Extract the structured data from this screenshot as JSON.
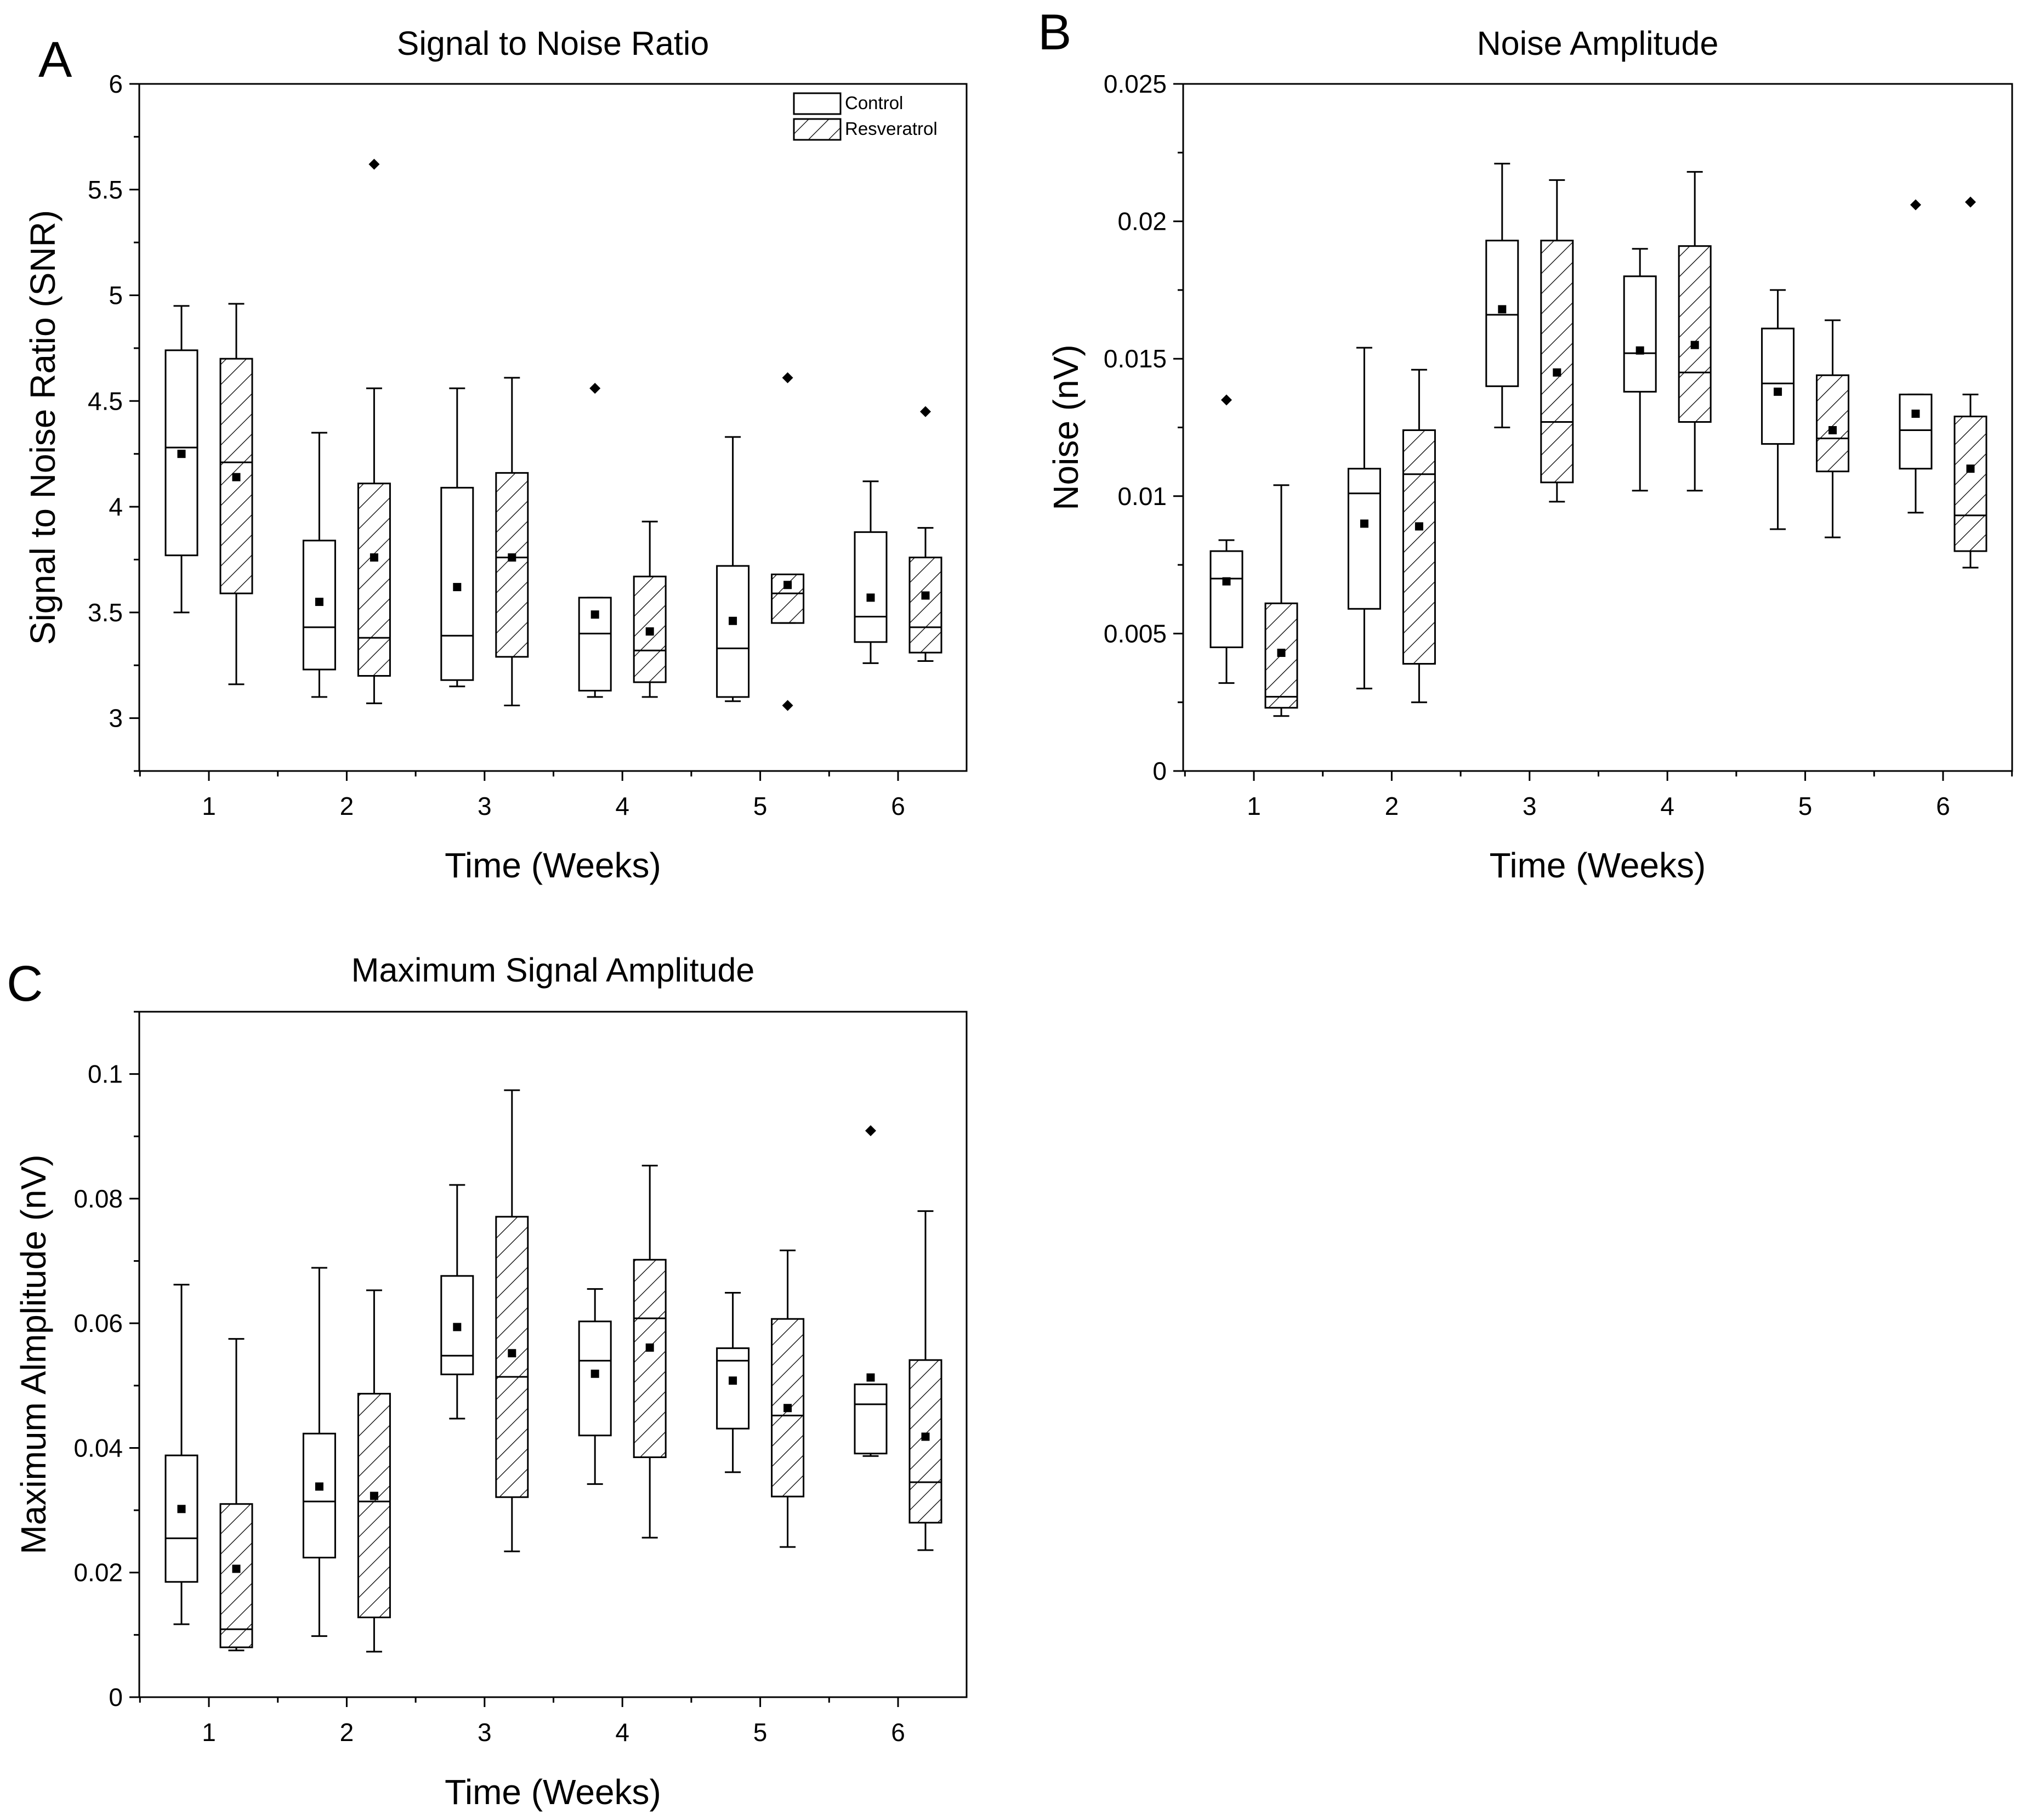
{
  "chart_data": [
    {
      "type": "box",
      "panel": "A",
      "title": "Signal to Noise Ratio",
      "xlabel": "Time (Weeks)",
      "ylabel": "Signal to Noise Ratio (SNR)",
      "categories": [
        "1",
        "2",
        "3",
        "4",
        "5",
        "6"
      ],
      "ylim": [
        2.75,
        6
      ],
      "yticks": [
        "3",
        "3.5",
        "4",
        "4.5",
        "5",
        "5.5",
        "6"
      ],
      "legend": {
        "placement": "top-right",
        "entries": [
          "Control",
          "Resveratrol"
        ]
      },
      "series": [
        {
          "name": "Control",
          "pattern": "none",
          "boxes": [
            {
              "whislo": 3.5,
              "q1": 3.77,
              "med": 4.28,
              "q3": 4.74,
              "whishi": 4.95,
              "mean": 4.25,
              "fliers": []
            },
            {
              "whislo": 3.1,
              "q1": 3.23,
              "med": 3.43,
              "q3": 3.84,
              "whishi": 4.35,
              "mean": 3.55,
              "fliers": []
            },
            {
              "whislo": 3.15,
              "q1": 3.18,
              "med": 3.39,
              "q3": 4.09,
              "whishi": 4.56,
              "mean": 3.62,
              "fliers": []
            },
            {
              "whislo": 3.1,
              "q1": 3.13,
              "med": 3.4,
              "q3": 3.57,
              "whishi": 3.57,
              "mean": 3.49,
              "fliers": [
                4.56
              ]
            },
            {
              "whislo": 3.08,
              "q1": 3.1,
              "med": 3.33,
              "q3": 3.72,
              "whishi": 4.33,
              "mean": 3.46,
              "fliers": []
            },
            {
              "whislo": 3.26,
              "q1": 3.36,
              "med": 3.48,
              "q3": 3.88,
              "whishi": 4.12,
              "mean": 3.57,
              "fliers": []
            }
          ]
        },
        {
          "name": "Resveratrol",
          "pattern": "hatched",
          "boxes": [
            {
              "whislo": 3.16,
              "q1": 3.59,
              "med": 4.21,
              "q3": 4.7,
              "whishi": 4.96,
              "mean": 4.14,
              "fliers": []
            },
            {
              "whislo": 3.07,
              "q1": 3.2,
              "med": 3.38,
              "q3": 4.11,
              "whishi": 4.56,
              "mean": 3.76,
              "fliers": [
                5.62
              ]
            },
            {
              "whislo": 3.06,
              "q1": 3.29,
              "med": 3.76,
              "q3": 4.16,
              "whishi": 4.61,
              "mean": 3.76,
              "fliers": []
            },
            {
              "whislo": 3.1,
              "q1": 3.17,
              "med": 3.32,
              "q3": 3.67,
              "whishi": 3.93,
              "mean": 3.41,
              "fliers": []
            },
            {
              "whislo": 3.45,
              "q1": 3.45,
              "med": 3.59,
              "q3": 3.68,
              "whishi": 3.68,
              "mean": 3.63,
              "fliers": [
                4.61,
                3.06
              ]
            },
            {
              "whislo": 3.27,
              "q1": 3.31,
              "med": 3.43,
              "q3": 3.76,
              "whishi": 3.9,
              "mean": 3.58,
              "fliers": [
                4.45
              ]
            }
          ]
        }
      ]
    },
    {
      "type": "box",
      "panel": "B",
      "title": "Noise Amplitude",
      "xlabel": "Time (Weeks)",
      "ylabel": "Noise (nV)",
      "categories": [
        "1",
        "2",
        "3",
        "4",
        "5",
        "6"
      ],
      "ylim": [
        0,
        0.025
      ],
      "yticks": [
        "0",
        "0.005",
        "0.01",
        "0.015",
        "0.02",
        "0.025"
      ],
      "series": [
        {
          "name": "Control",
          "pattern": "none",
          "boxes": [
            {
              "whislo": 0.0032,
              "q1": 0.0045,
              "med": 0.007,
              "q3": 0.008,
              "whishi": 0.0084,
              "mean": 0.0069,
              "fliers": [
                0.0135
              ]
            },
            {
              "whislo": 0.003,
              "q1": 0.0059,
              "med": 0.0101,
              "q3": 0.011,
              "whishi": 0.0154,
              "mean": 0.009,
              "fliers": []
            },
            {
              "whislo": 0.0125,
              "q1": 0.014,
              "med": 0.0166,
              "q3": 0.0193,
              "whishi": 0.0221,
              "mean": 0.0168,
              "fliers": []
            },
            {
              "whislo": 0.0102,
              "q1": 0.0138,
              "med": 0.0152,
              "q3": 0.018,
              "whishi": 0.019,
              "mean": 0.0153,
              "fliers": []
            },
            {
              "whislo": 0.0088,
              "q1": 0.0119,
              "med": 0.0141,
              "q3": 0.0161,
              "whishi": 0.0175,
              "mean": 0.0138,
              "fliers": []
            },
            {
              "whislo": 0.0094,
              "q1": 0.011,
              "med": 0.0124,
              "q3": 0.0137,
              "whishi": 0.0137,
              "mean": 0.013,
              "fliers": [
                0.0206
              ]
            }
          ]
        },
        {
          "name": "Resveratrol",
          "pattern": "hatched",
          "boxes": [
            {
              "whislo": 0.002,
              "q1": 0.0023,
              "med": 0.0027,
              "q3": 0.0061,
              "whishi": 0.0104,
              "mean": 0.0043,
              "fliers": []
            },
            {
              "whislo": 0.0025,
              "q1": 0.0039,
              "med": 0.0108,
              "q3": 0.0124,
              "whishi": 0.0146,
              "mean": 0.0089,
              "fliers": []
            },
            {
              "whislo": 0.0098,
              "q1": 0.0105,
              "med": 0.0127,
              "q3": 0.0193,
              "whishi": 0.0215,
              "mean": 0.0145,
              "fliers": []
            },
            {
              "whislo": 0.0102,
              "q1": 0.0127,
              "med": 0.0145,
              "q3": 0.0191,
              "whishi": 0.0218,
              "mean": 0.0155,
              "fliers": []
            },
            {
              "whislo": 0.0085,
              "q1": 0.0109,
              "med": 0.0121,
              "q3": 0.0144,
              "whishi": 0.0164,
              "mean": 0.0124,
              "fliers": []
            },
            {
              "whislo": 0.0074,
              "q1": 0.008,
              "med": 0.0093,
              "q3": 0.0129,
              "whishi": 0.0137,
              "mean": 0.011,
              "fliers": [
                0.0207
              ]
            }
          ]
        }
      ]
    },
    {
      "type": "box",
      "panel": "C",
      "title": "Maximum Signal Amplitude",
      "xlabel": "Time (Weeks)",
      "ylabel": "Maximum Almplitude (nV)",
      "categories": [
        "1",
        "2",
        "3",
        "4",
        "5",
        "6"
      ],
      "ylim": [
        0,
        0.11
      ],
      "yticks": [
        "0",
        "0.02",
        "0.04",
        "0.06",
        "0.08",
        "0.1"
      ],
      "series": [
        {
          "name": "Control",
          "pattern": "none",
          "boxes": [
            {
              "whislo": 0.0117,
              "q1": 0.0185,
              "med": 0.0255,
              "q3": 0.0388,
              "whishi": 0.0662,
              "mean": 0.0302,
              "fliers": []
            },
            {
              "whislo": 0.0098,
              "q1": 0.0224,
              "med": 0.0314,
              "q3": 0.0423,
              "whishi": 0.0689,
              "mean": 0.0338,
              "fliers": []
            },
            {
              "whislo": 0.0447,
              "q1": 0.0518,
              "med": 0.0548,
              "q3": 0.0676,
              "whishi": 0.0822,
              "mean": 0.0594,
              "fliers": []
            },
            {
              "whislo": 0.0342,
              "q1": 0.042,
              "med": 0.054,
              "q3": 0.0603,
              "whishi": 0.0655,
              "mean": 0.0519,
              "fliers": []
            },
            {
              "whislo": 0.0361,
              "q1": 0.0431,
              "med": 0.054,
              "q3": 0.056,
              "whishi": 0.0649,
              "mean": 0.0508,
              "fliers": []
            },
            {
              "whislo": 0.0387,
              "q1": 0.0391,
              "med": 0.047,
              "q3": 0.0502,
              "whishi": 0.0502,
              "mean": 0.0513,
              "fliers": [
                0.0909
              ]
            }
          ]
        },
        {
          "name": "Resveratrol",
          "pattern": "hatched",
          "boxes": [
            {
              "whislo": 0.0075,
              "q1": 0.008,
              "med": 0.0109,
              "q3": 0.031,
              "whishi": 0.0575,
              "mean": 0.0206,
              "fliers": []
            },
            {
              "whislo": 0.0073,
              "q1": 0.0128,
              "med": 0.0314,
              "q3": 0.0487,
              "whishi": 0.0653,
              "mean": 0.0323,
              "fliers": []
            },
            {
              "whislo": 0.0234,
              "q1": 0.0321,
              "med": 0.0514,
              "q3": 0.0771,
              "whishi": 0.0974,
              "mean": 0.0552,
              "fliers": []
            },
            {
              "whislo": 0.0256,
              "q1": 0.0385,
              "med": 0.0608,
              "q3": 0.0702,
              "whishi": 0.0853,
              "mean": 0.0561,
              "fliers": []
            },
            {
              "whislo": 0.0241,
              "q1": 0.0322,
              "med": 0.0452,
              "q3": 0.0607,
              "whishi": 0.0717,
              "mean": 0.0464,
              "fliers": []
            },
            {
              "whislo": 0.0236,
              "q1": 0.028,
              "med": 0.0345,
              "q3": 0.0541,
              "whishi": 0.078,
              "mean": 0.0418,
              "fliers": []
            }
          ]
        }
      ]
    }
  ]
}
